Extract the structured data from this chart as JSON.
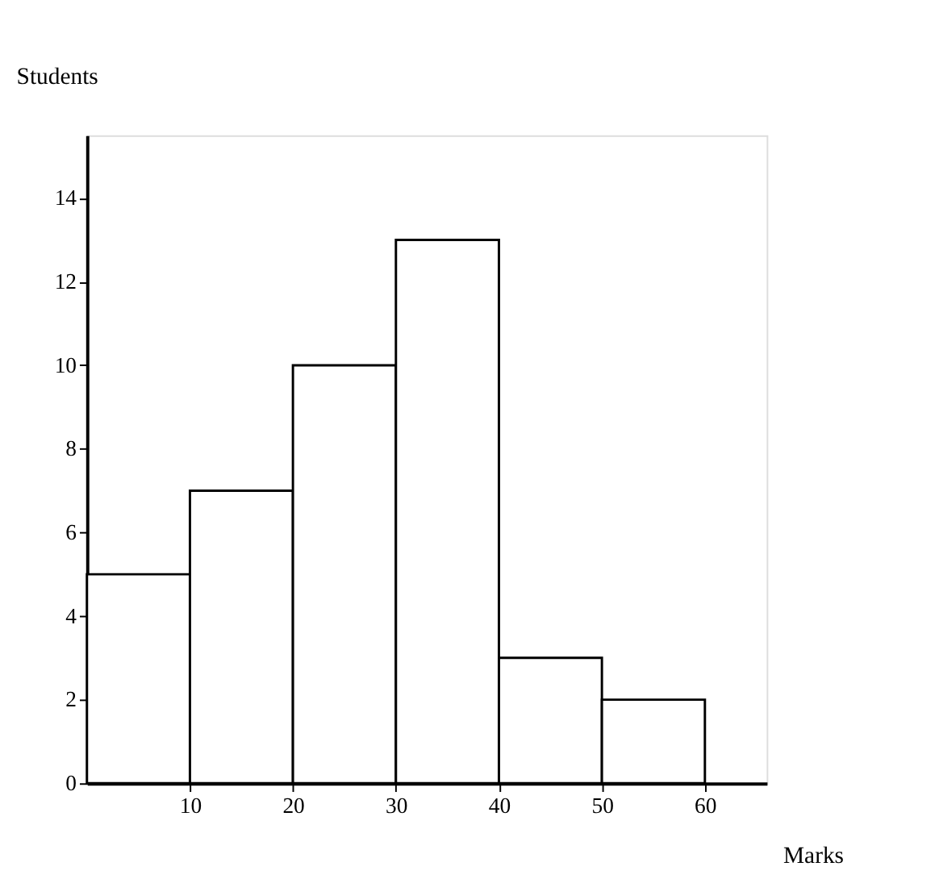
{
  "chart_data": {
    "type": "histogram",
    "xlabel": "Marks",
    "ylabel": "Students",
    "bins": [
      0,
      10,
      20,
      30,
      40,
      50,
      60
    ],
    "values": [
      5,
      7,
      10,
      13,
      3,
      2
    ],
    "color": "#ffffff",
    "xlim": [
      0,
      66
    ],
    "ylim": [
      0,
      15.5
    ],
    "xticks": [
      10,
      20,
      30,
      40,
      50,
      60
    ],
    "yticks": [
      0,
      2,
      4,
      6,
      8,
      10,
      12,
      14
    ],
    "grid": false
  }
}
